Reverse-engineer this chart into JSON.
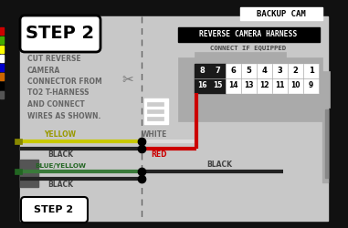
{
  "bg_color": "#1a1a1a",
  "panel_color": "#c8c8c8",
  "title_text": "BACKUP CAM",
  "step_text": "STEP 2",
  "instruction_text": "CUT REVERSE\nCAMERA\nCONNECTOR FROM\nTO2 T-HARNESS\nAND CONNECT\nWIRES AS SHOWN.",
  "harness_title": "REVERSE CAMERA HARNESS",
  "harness_subtitle": "CONNECT IF EQUIPPED",
  "connector_top_row": [
    "8",
    "7",
    "6",
    "5",
    "4",
    "3",
    "2",
    "1"
  ],
  "connector_bot_row": [
    "16",
    "15",
    "14",
    "13",
    "12",
    "11",
    "10",
    "9"
  ],
  "wire_yellow_label": "YELLOW",
  "wire_black1_label": "BLACK",
  "wire_white_label": "WHITE",
  "wire_red_label": "RED",
  "wire_blueyellow_label": "BLUE/YELLOW",
  "wire_black2_label": "BLACK",
  "wire_black3_label": "BLACK",
  "left_border_color": "#111111",
  "right_border_color": "#111111",
  "wire_yellow_color": "#c8c800",
  "wire_black_color": "#222222",
  "wire_white_color": "#cccccc",
  "wire_red_color": "#cc0000",
  "wire_blue_yellow_color": "#3a7a3a",
  "connector_black_color": "#1a1a1a",
  "connector_white_color": "#ffffff",
  "connector_grey_color": "#aaaaaa",
  "label_grey": "#666666",
  "label_yellow": "#999900",
  "label_blue": "#226622"
}
